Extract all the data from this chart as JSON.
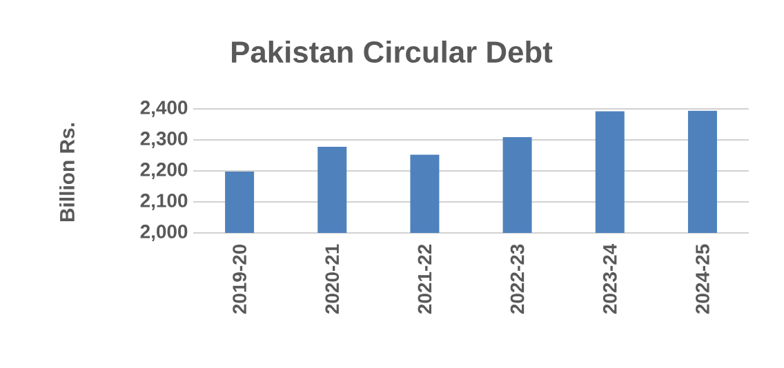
{
  "chart_data": {
    "type": "bar",
    "title": "Pakistan Circular Debt",
    "ylabel": "Billion Rs.",
    "categories": [
      "2019-20",
      "2020-21",
      "2021-22",
      "2022-23",
      "2023-24",
      "2024-25"
    ],
    "values": [
      2198,
      2278,
      2252,
      2309,
      2392,
      2394
    ],
    "color": "#4f81bd",
    "ylim": [
      2000,
      2400
    ],
    "yticks": [
      {
        "value": 2000,
        "label": "2,000"
      },
      {
        "value": 2100,
        "label": "2,100"
      },
      {
        "value": 2200,
        "label": "2,200"
      },
      {
        "value": 2300,
        "label": "2,300"
      },
      {
        "value": 2400,
        "label": "2,400"
      }
    ],
    "grid": "y"
  }
}
